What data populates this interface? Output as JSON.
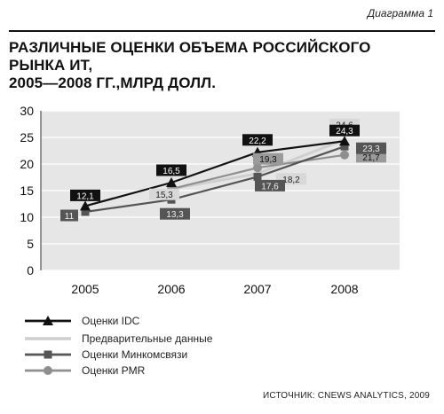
{
  "header": {
    "diagram_label": "Диаграмма 1",
    "title_line1": "РАЗЛИЧНЫЕ ОЦЕНКИ ОБЪЕМА РОССИЙСКОГО РЫНКА ИТ,",
    "title_line2": "2005—2008 ГГ.,МЛРД ДОЛЛ."
  },
  "source": "ИСТОЧНИК: CNEWS ANALYTICS, 2009",
  "colors": {
    "idc": "#111111",
    "preliminary": "#cfcfcf",
    "minkomsvyaz": "#555555",
    "pmr": "#8f8f8f",
    "plot_bg": "#e6e6e6"
  },
  "chart_data": {
    "type": "line",
    "title": "РАЗЛИЧНЫЕ ОЦЕНКИ ОБЪЕМА РОССИЙСКОГО РЫНКА ИТ, 2005—2008 ГГ.,МЛРД ДОЛЛ.",
    "xlabel": "",
    "ylabel": "",
    "categories": [
      "2005",
      "2006",
      "2007",
      "2008"
    ],
    "ylim": [
      0,
      30
    ],
    "yticks": [
      "0",
      "5",
      "10",
      "15",
      "20",
      "25",
      "30"
    ],
    "grid": true,
    "legend_position": "bottom",
    "series": [
      {
        "name": "Оценки IDC",
        "key": "idc",
        "marker": "triangle",
        "values": [
          12.1,
          16.5,
          22.2,
          24.3
        ],
        "labels": [
          "12,1",
          "16,5",
          "22,2",
          "24,3"
        ]
      },
      {
        "name": "Предварительные данные",
        "key": "preliminary",
        "marker": "none",
        "values": [
          null,
          15.3,
          18.2,
          24.6
        ],
        "labels": [
          "",
          "15,3",
          "18,2",
          "24,6"
        ]
      },
      {
        "name": "Оценки Минкомсвязи",
        "key": "minkomsvyaz",
        "marker": "square",
        "values": [
          11.0,
          13.3,
          17.6,
          23.3
        ],
        "labels": [
          "11",
          "13,3",
          "17,6",
          "23,3"
        ]
      },
      {
        "name": "Оценки PMR",
        "key": "pmr",
        "marker": "circle",
        "values": [
          null,
          15.3,
          19.3,
          21.7
        ],
        "labels": [
          "",
          "",
          "19,3",
          "21,7"
        ]
      }
    ]
  },
  "legend": {
    "items": [
      {
        "label": "Оценки IDC"
      },
      {
        "label": "Предварительные данные"
      },
      {
        "label": "Оценки Минкомсвязи"
      },
      {
        "label": "Оценки PMR"
      }
    ]
  }
}
